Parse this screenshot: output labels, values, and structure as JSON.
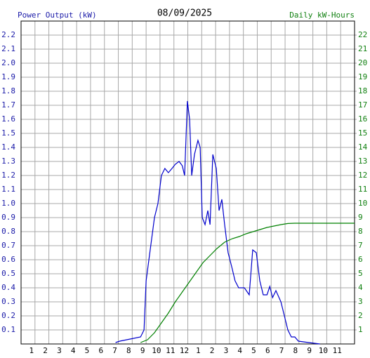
{
  "chart_data": {
    "type": "line",
    "title": "08/09/2025",
    "y_label": "Power Output (kW)",
    "y2_label": "Daily kW-Hours",
    "xlim": [
      0,
      24
    ],
    "xticks": [
      {
        "value": 1,
        "label": "1"
      },
      {
        "value": 2,
        "label": "2"
      },
      {
        "value": 3,
        "label": "3"
      },
      {
        "value": 4,
        "label": "4"
      },
      {
        "value": 5,
        "label": "5"
      },
      {
        "value": 6,
        "label": "6"
      },
      {
        "value": 7,
        "label": "7"
      },
      {
        "value": 8,
        "label": "8"
      },
      {
        "value": 9,
        "label": "9"
      },
      {
        "value": 10,
        "label": "10"
      },
      {
        "value": 11,
        "label": "11"
      },
      {
        "value": 12,
        "label": "12"
      },
      {
        "value": 13,
        "label": "1"
      },
      {
        "value": 14,
        "label": "2"
      },
      {
        "value": 15,
        "label": "3"
      },
      {
        "value": 16,
        "label": "4"
      },
      {
        "value": 17,
        "label": "5"
      },
      {
        "value": 18,
        "label": "6"
      },
      {
        "value": 19,
        "label": "7"
      },
      {
        "value": 20,
        "label": "8"
      },
      {
        "value": 21,
        "label": "9"
      },
      {
        "value": 22,
        "label": "10"
      },
      {
        "value": 23,
        "label": "11"
      }
    ],
    "ylim": [
      0,
      2.3
    ],
    "yticks": [
      0.1,
      0.2,
      0.3,
      0.4,
      0.5,
      0.6,
      0.7,
      0.8,
      0.9,
      {
        "value": 1,
        "label": "1.0"
      },
      1.1,
      1.2,
      1.3,
      1.4,
      1.5,
      1.6,
      1.7,
      1.8,
      1.9,
      {
        "value": 2,
        "label": "2.0"
      },
      2.1,
      2.2
    ],
    "y2lim": [
      0,
      23
    ],
    "y2ticks": [
      1,
      2,
      3,
      4,
      5,
      6,
      7,
      8,
      9,
      10,
      11,
      12,
      13,
      14,
      15,
      16,
      17,
      18,
      19,
      20,
      21,
      22
    ],
    "grid": true,
    "series": [
      {
        "name": "Power Output (kW)",
        "color": "#0000cc",
        "x": [
          6.8,
          7.1,
          7.6,
          8.1,
          8.6,
          8.85,
          9.0,
          9.2,
          9.4,
          9.6,
          9.85,
          10.1,
          10.35,
          10.6,
          10.86,
          11.1,
          11.37,
          11.6,
          11.77,
          11.97,
          12.13,
          12.28,
          12.48,
          12.73,
          12.89,
          13.04,
          13.24,
          13.44,
          13.6,
          13.8,
          14.05,
          14.25,
          14.45,
          14.65,
          14.9,
          15.16,
          15.4,
          15.66,
          16.07,
          16.42,
          16.67,
          16.93,
          17.18,
          17.43,
          17.7,
          17.9,
          18.1,
          18.34,
          18.7,
          18.95,
          19.2,
          19.45,
          19.7,
          19.96,
          20.7,
          21.5
        ],
        "values": [
          0.01,
          0.02,
          0.03,
          0.04,
          0.05,
          0.1,
          0.45,
          0.6,
          0.75,
          0.9,
          1.0,
          1.2,
          1.25,
          1.22,
          1.25,
          1.28,
          1.3,
          1.27,
          1.2,
          1.73,
          1.6,
          1.2,
          1.35,
          1.45,
          1.4,
          0.9,
          0.85,
          0.95,
          0.85,
          1.35,
          1.25,
          0.95,
          1.03,
          0.85,
          0.65,
          0.55,
          0.45,
          0.4,
          0.4,
          0.35,
          0.67,
          0.65,
          0.45,
          0.35,
          0.35,
          0.41,
          0.33,
          0.38,
          0.3,
          0.2,
          0.1,
          0.05,
          0.05,
          0.02,
          0.01,
          0
        ]
      },
      {
        "name": "Daily kW-Hours",
        "color": "#008000",
        "axis": "y2",
        "x": [
          8.6,
          9.1,
          9.6,
          10.1,
          10.6,
          11.1,
          11.6,
          12.1,
          12.6,
          13.1,
          13.6,
          14.1,
          14.65,
          15.2,
          15.7,
          16.2,
          16.7,
          17.2,
          17.7,
          18.2,
          18.7,
          19.2,
          19.7,
          24
        ],
        "values": [
          0.1,
          0.3,
          0.8,
          1.5,
          2.2,
          3.0,
          3.7,
          4.4,
          5.1,
          5.8,
          6.3,
          6.8,
          7.25,
          7.5,
          7.65,
          7.85,
          8.0,
          8.15,
          8.3,
          8.4,
          8.5,
          8.58,
          8.6,
          8.6
        ]
      }
    ]
  }
}
